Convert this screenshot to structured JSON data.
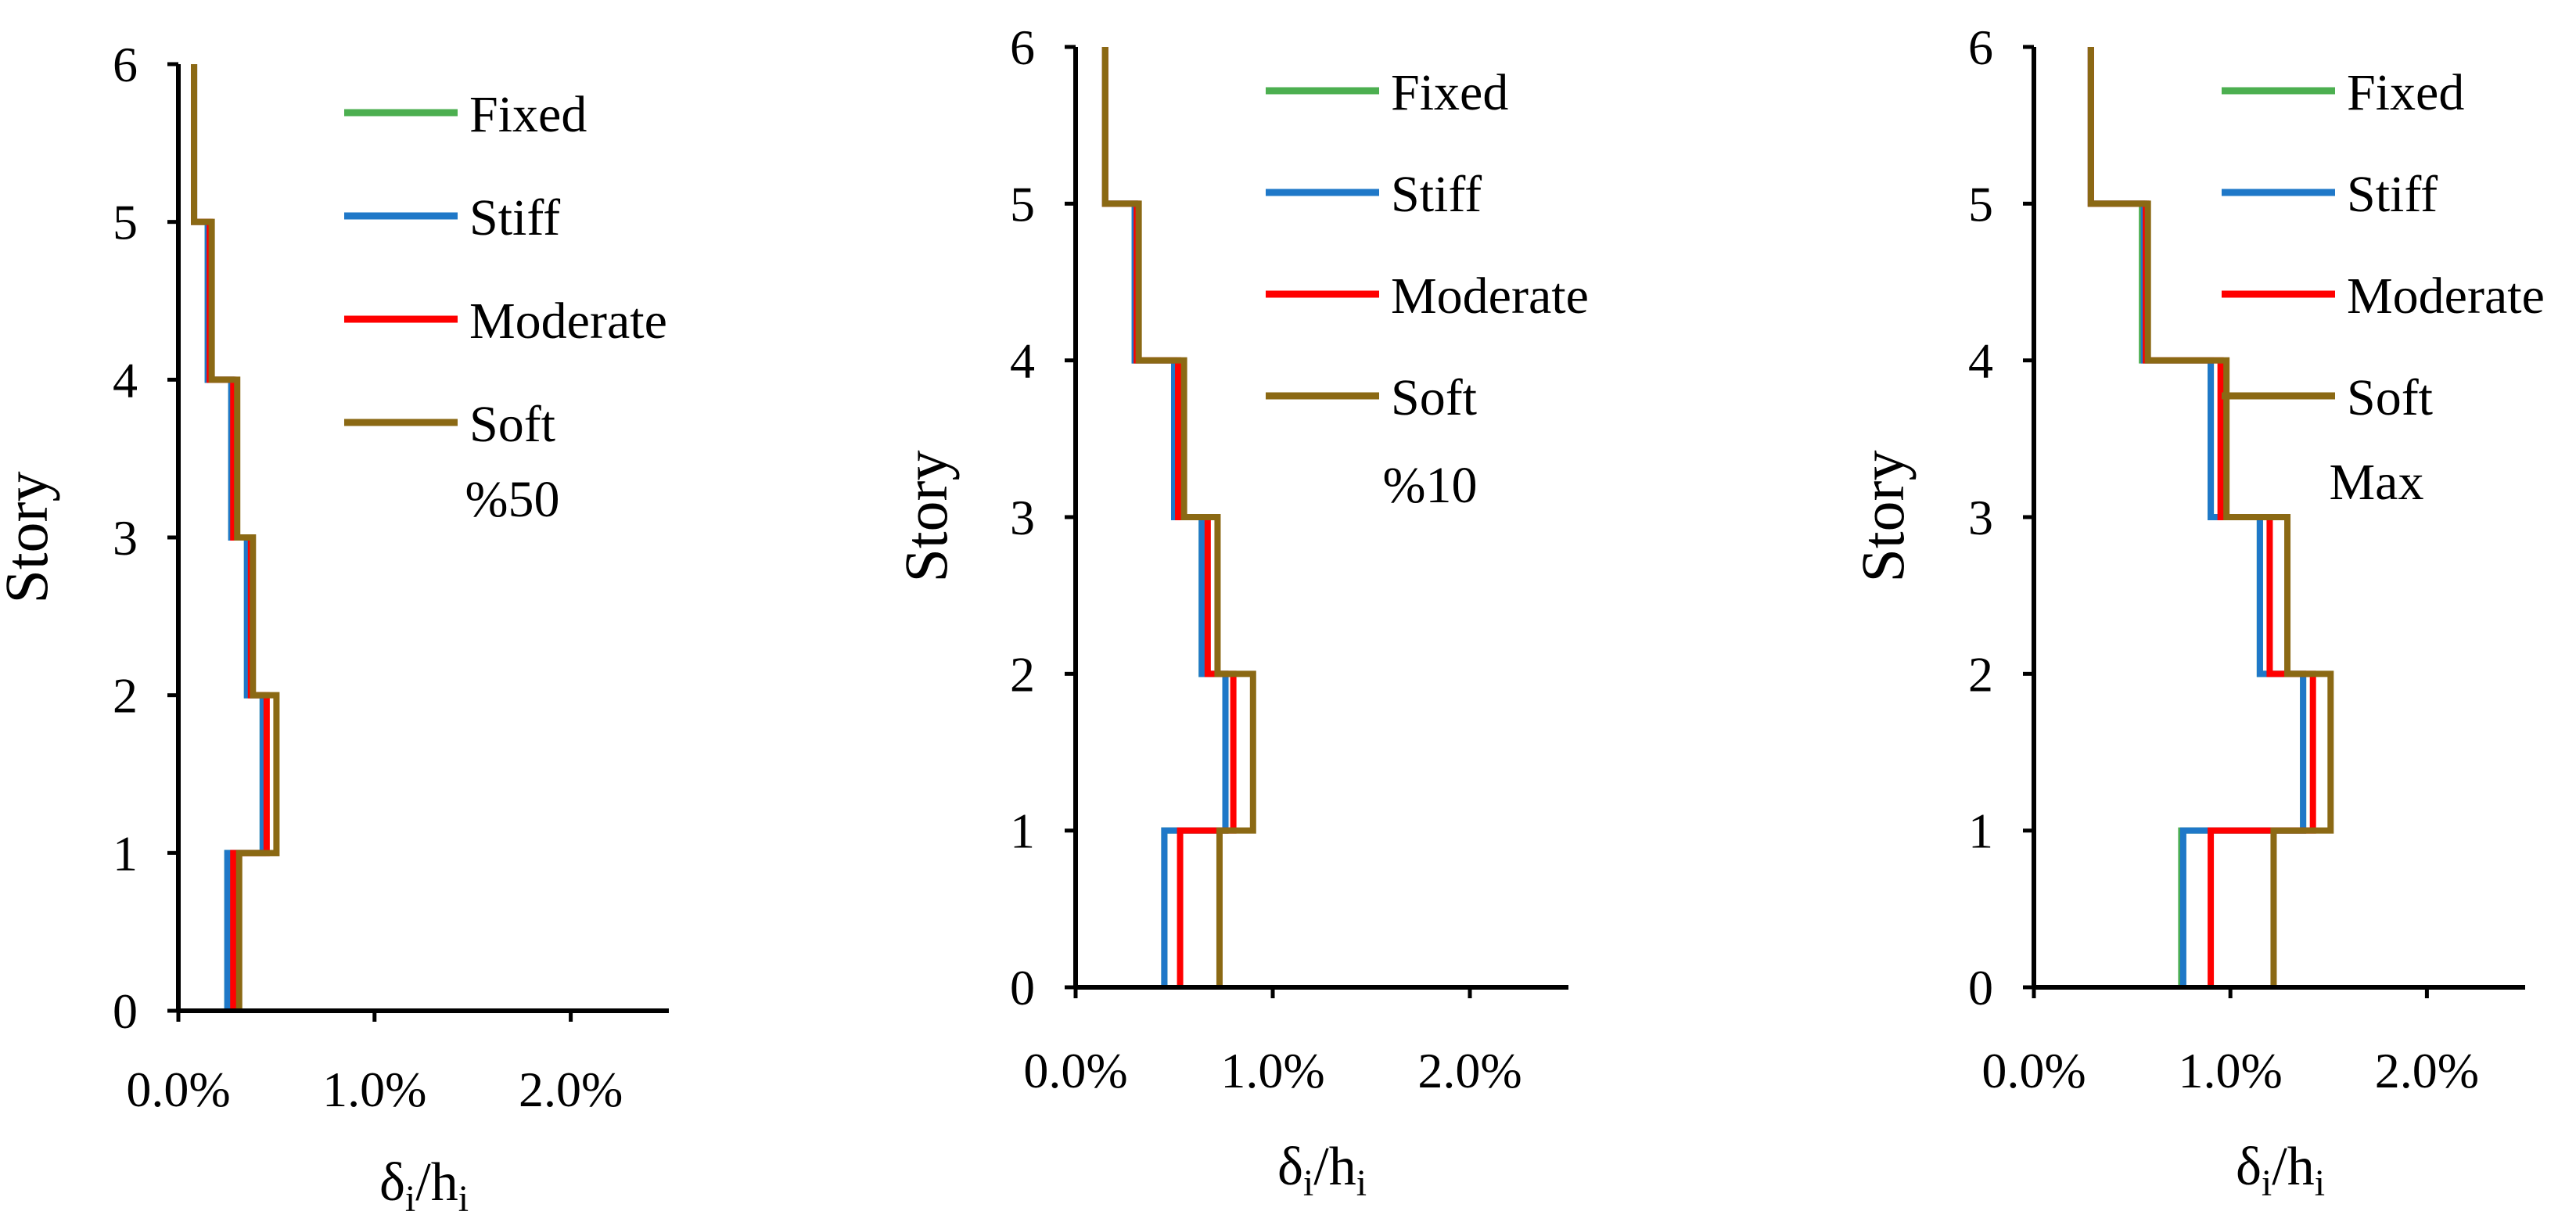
{
  "colors": {
    "Fixed": "#4CAF50",
    "Stiff": "#1F78C8",
    "Moderate": "#FF0000",
    "Soft": "#8B6914",
    "axis": "#000000"
  },
  "chart_data": [
    {
      "type": "line",
      "style": "step-profile",
      "annotation": "%50",
      "ylabel": "Story",
      "xlabel": {
        "main": "δ",
        "sub1": "i",
        "slash": "/h",
        "sub2": "i"
      },
      "xlim": [
        0,
        2.5
      ],
      "ylim": [
        0,
        6
      ],
      "xticks": [
        0,
        1,
        2
      ],
      "xtick_labels": [
        "0.0%",
        "1.0%",
        "2.0%"
      ],
      "yticks": [
        0,
        1,
        2,
        3,
        4,
        5,
        6
      ],
      "ytick_labels": [
        "0",
        "1",
        "2",
        "3",
        "4",
        "5",
        "6"
      ],
      "legend": [
        "Fixed",
        "Stiff",
        "Moderate",
        "Soft"
      ],
      "series": [
        {
          "name": "Fixed",
          "values": [
            0.25,
            0.43,
            0.35,
            0.27,
            0.15,
            0.08
          ]
        },
        {
          "name": "Stiff",
          "values": [
            0.25,
            0.43,
            0.35,
            0.27,
            0.15,
            0.08
          ]
        },
        {
          "name": "Moderate",
          "values": [
            0.28,
            0.45,
            0.37,
            0.28,
            0.16,
            0.08
          ]
        },
        {
          "name": "Soft",
          "values": [
            0.31,
            0.5,
            0.38,
            0.3,
            0.17,
            0.08
          ]
        }
      ]
    },
    {
      "type": "line",
      "style": "step-profile",
      "annotation": "%10",
      "ylabel": "Story",
      "xlabel": {
        "main": "δ",
        "sub1": "i",
        "slash": "/h",
        "sub2": "i"
      },
      "xlim": [
        0,
        2.5
      ],
      "ylim": [
        0,
        6
      ],
      "xticks": [
        0,
        1,
        2
      ],
      "xtick_labels": [
        "0.0%",
        "1.0%",
        "2.0%"
      ],
      "yticks": [
        0,
        1,
        2,
        3,
        4,
        5,
        6
      ],
      "ytick_labels": [
        "0",
        "1",
        "2",
        "3",
        "4",
        "5",
        "6"
      ],
      "legend": [
        "Fixed",
        "Stiff",
        "Moderate",
        "Soft"
      ],
      "series": [
        {
          "name": "Fixed",
          "values": [
            0.45,
            0.76,
            0.64,
            0.5,
            0.3,
            0.15
          ]
        },
        {
          "name": "Stiff",
          "values": [
            0.45,
            0.76,
            0.64,
            0.5,
            0.3,
            0.15
          ]
        },
        {
          "name": "Moderate",
          "values": [
            0.53,
            0.8,
            0.67,
            0.52,
            0.31,
            0.15
          ]
        },
        {
          "name": "Soft",
          "values": [
            0.73,
            0.9,
            0.72,
            0.55,
            0.32,
            0.15
          ]
        }
      ]
    },
    {
      "type": "line",
      "style": "step-profile",
      "annotation": "Max",
      "ylabel": "Story",
      "xlabel": {
        "main": "δ",
        "sub1": "i",
        "slash": "/h",
        "sub2": "i"
      },
      "xlim": [
        0,
        2.5
      ],
      "ylim": [
        0,
        6
      ],
      "xticks": [
        0,
        1,
        2
      ],
      "xtick_labels": [
        "0.0%",
        "1.0%",
        "2.0%"
      ],
      "yticks": [
        0,
        1,
        2,
        3,
        4,
        5,
        6
      ],
      "ytick_labels": [
        "0",
        "1",
        "2",
        "3",
        "4",
        "5",
        "6"
      ],
      "legend": [
        "Fixed",
        "Stiff",
        "Moderate",
        "Soft"
      ],
      "series": [
        {
          "name": "Fixed",
          "values": [
            0.75,
            1.37,
            1.15,
            0.9,
            0.55,
            0.29
          ]
        },
        {
          "name": "Stiff",
          "values": [
            0.76,
            1.37,
            1.15,
            0.9,
            0.56,
            0.29
          ]
        },
        {
          "name": "Moderate",
          "values": [
            0.9,
            1.42,
            1.2,
            0.95,
            0.57,
            0.29
          ]
        },
        {
          "name": "Soft",
          "values": [
            1.22,
            1.51,
            1.29,
            0.98,
            0.58,
            0.29
          ]
        }
      ]
    }
  ]
}
